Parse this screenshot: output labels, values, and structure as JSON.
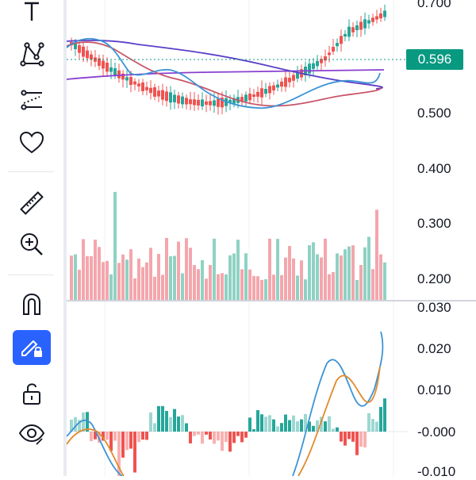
{
  "price_axis": {
    "top": "0.700",
    "labels": [
      "0.500",
      "0.400",
      "0.300",
      "0.200"
    ]
  },
  "current_price": "0.596",
  "oscillator_axis": {
    "labels": [
      "0.030",
      "0.020",
      "0.010",
      "-0.000",
      "-0.010"
    ]
  },
  "toolbar": {
    "tools": [
      {
        "name": "text-tool",
        "icon": "text-icon"
      },
      {
        "name": "pattern-tool",
        "icon": "pattern-icon"
      },
      {
        "name": "forecast-tool",
        "icon": "forecast-icon"
      },
      {
        "name": "favorites-tool",
        "icon": "heart-icon"
      },
      {
        "name": "measure-tool",
        "icon": "ruler-icon"
      },
      {
        "name": "zoom-tool",
        "icon": "zoom-in-icon"
      },
      {
        "name": "magnet-tool",
        "icon": "magnet-icon"
      },
      {
        "name": "lock-drawings-tool",
        "icon": "pencil-lock-icon",
        "active": true
      },
      {
        "name": "lock-all-tool",
        "icon": "unlock-icon"
      },
      {
        "name": "hide-tool",
        "icon": "eye-icon"
      }
    ]
  },
  "colors": {
    "up": "#26a69a",
    "down": "#ef5350",
    "volume_up": "#8fd2c4",
    "volume_down": "#f4a6ad",
    "ma_blue": "#3c94d6",
    "ma_red": "#c8566b",
    "ma_purple": "#8a3fd1",
    "accent": "#2962ff",
    "price_tag": "#089981"
  }
}
